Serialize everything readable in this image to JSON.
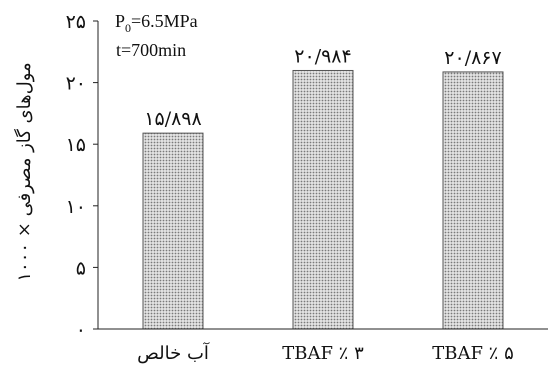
{
  "chart_data": {
    "type": "bar",
    "ylabel": "مول‌های گاز مصرفی × ۱۰۰۰",
    "ylim": [
      0,
      25
    ],
    "yticks": [
      {
        "value": 0,
        "label": "۰"
      },
      {
        "value": 5,
        "label": "۵"
      },
      {
        "value": 10,
        "label": "۱۰"
      },
      {
        "value": 15,
        "label": "۱۵"
      },
      {
        "value": 20,
        "label": "۲۰"
      },
      {
        "value": 25,
        "label": "۲۵"
      }
    ],
    "categories": [
      "آب خالص",
      "TBAF ٪ ۳",
      "TBAF ٪ ۵"
    ],
    "values": [
      15.898,
      20.984,
      20.867
    ],
    "value_labels": [
      "۱۵/۸۹۸",
      "۲۰/۹۸۴",
      "۲۰/۸۶۷"
    ],
    "annotations": {
      "pressure_symbol": "P",
      "pressure_subscript": "0",
      "pressure_value": "=6.5MPa",
      "time": "t=700min"
    },
    "grid": false,
    "legend": "none",
    "bar_fill": "#c9c9c9",
    "bar_stroke": "#555555"
  }
}
